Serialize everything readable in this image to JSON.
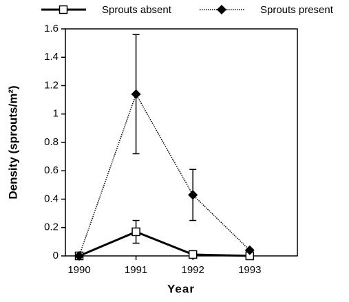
{
  "chart_data": {
    "type": "line",
    "xlabel": "Year",
    "ylabel": "Density (sprouts/m²)",
    "categories": [
      "1990",
      "1991",
      "1992",
      "1993"
    ],
    "ylim": [
      0,
      1.6
    ],
    "yticks": [
      0,
      0.2,
      0.4,
      0.6,
      0.8,
      1,
      1.2,
      1.4,
      1.6
    ],
    "legend": "top",
    "series": [
      {
        "name": "Sprouts absent",
        "color": "#000000",
        "line": "solid",
        "marker": "square",
        "values": [
          0,
          0.17,
          0.01,
          0
        ],
        "errors": [
          null,
          0.08,
          null,
          null
        ]
      },
      {
        "name": "Sprouts present",
        "color": "#000000",
        "line": "dotted",
        "marker": "diamond",
        "values": [
          0,
          1.14,
          0.43,
          0.04
        ],
        "errors": [
          null,
          0.42,
          0.18,
          null
        ]
      }
    ]
  }
}
